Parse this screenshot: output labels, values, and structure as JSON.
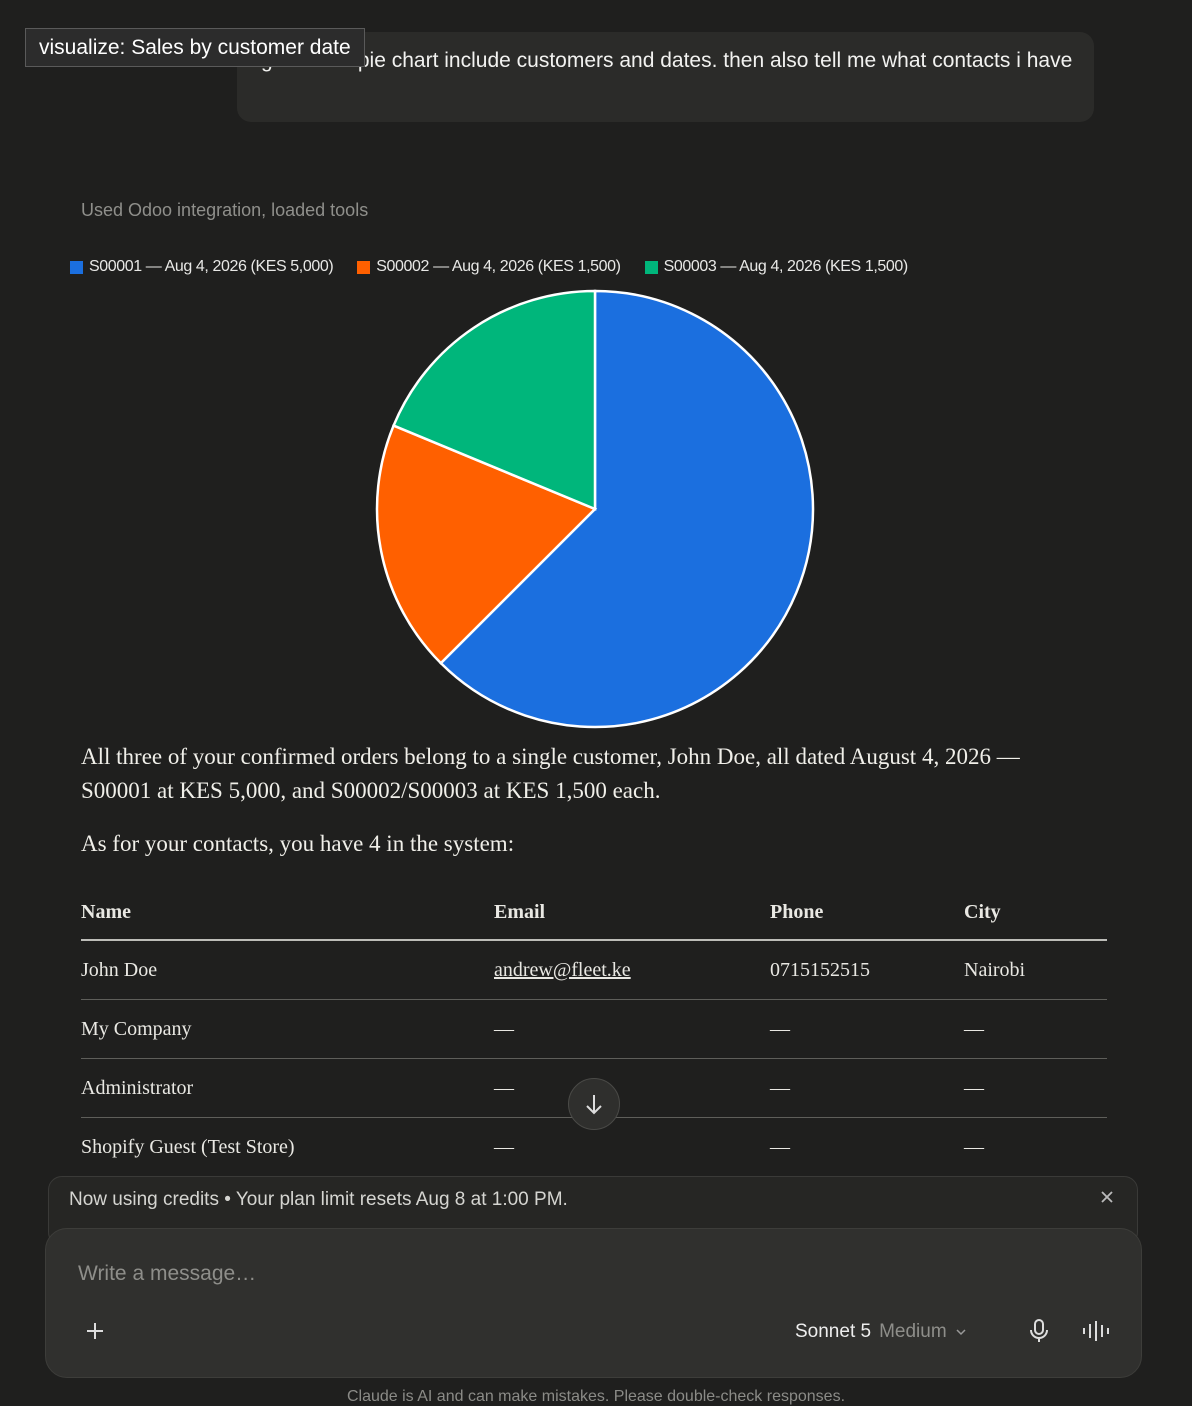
{
  "tooltip": "visualize: Sales by customer date",
  "user_message": "give me a pie chart include customers and dates. then also tell me what contacts i have",
  "tool_status": "Used Odoo integration, loaded tools",
  "chart_data": {
    "type": "pie",
    "categories": [
      "S00001 — Aug 4, 2026 (KES 5,000)",
      "S00002 — Aug 4, 2026 (KES 1,500)",
      "S00003 — Aug 4, 2026 (KES 1,500)"
    ],
    "values": [
      5000,
      1500,
      1500
    ],
    "colors": [
      "#1b6fdf",
      "#ff6000",
      "#00b67b"
    ]
  },
  "paragraphs": [
    "All three of your confirmed orders belong to a single customer, John Doe, all dated August 4, 2026 — S00001 at KES 5,000, and S00002/S00003 at KES 1,500 each.",
    "As for your contacts, you have 4 in the system:"
  ],
  "table": {
    "header": [
      "Name",
      "Email",
      "Phone",
      "City"
    ],
    "rows": [
      [
        "John Doe",
        "andrew@fleet.ke",
        "0715152515",
        "Nairobi"
      ],
      [
        "My Company",
        "—",
        "—",
        "—"
      ],
      [
        "Administrator",
        "—",
        "—",
        "—"
      ],
      [
        "Shopify Guest (Test Store)",
        "—",
        "—",
        "—"
      ]
    ]
  },
  "banner": "Now using credits • Your plan limit resets Aug 8 at 1:00 PM.",
  "composer": {
    "placeholder": "Write a message…",
    "model": "Sonnet 5",
    "effort": "Medium"
  },
  "footer": "Claude is AI and can make mistakes. Please double-check responses."
}
